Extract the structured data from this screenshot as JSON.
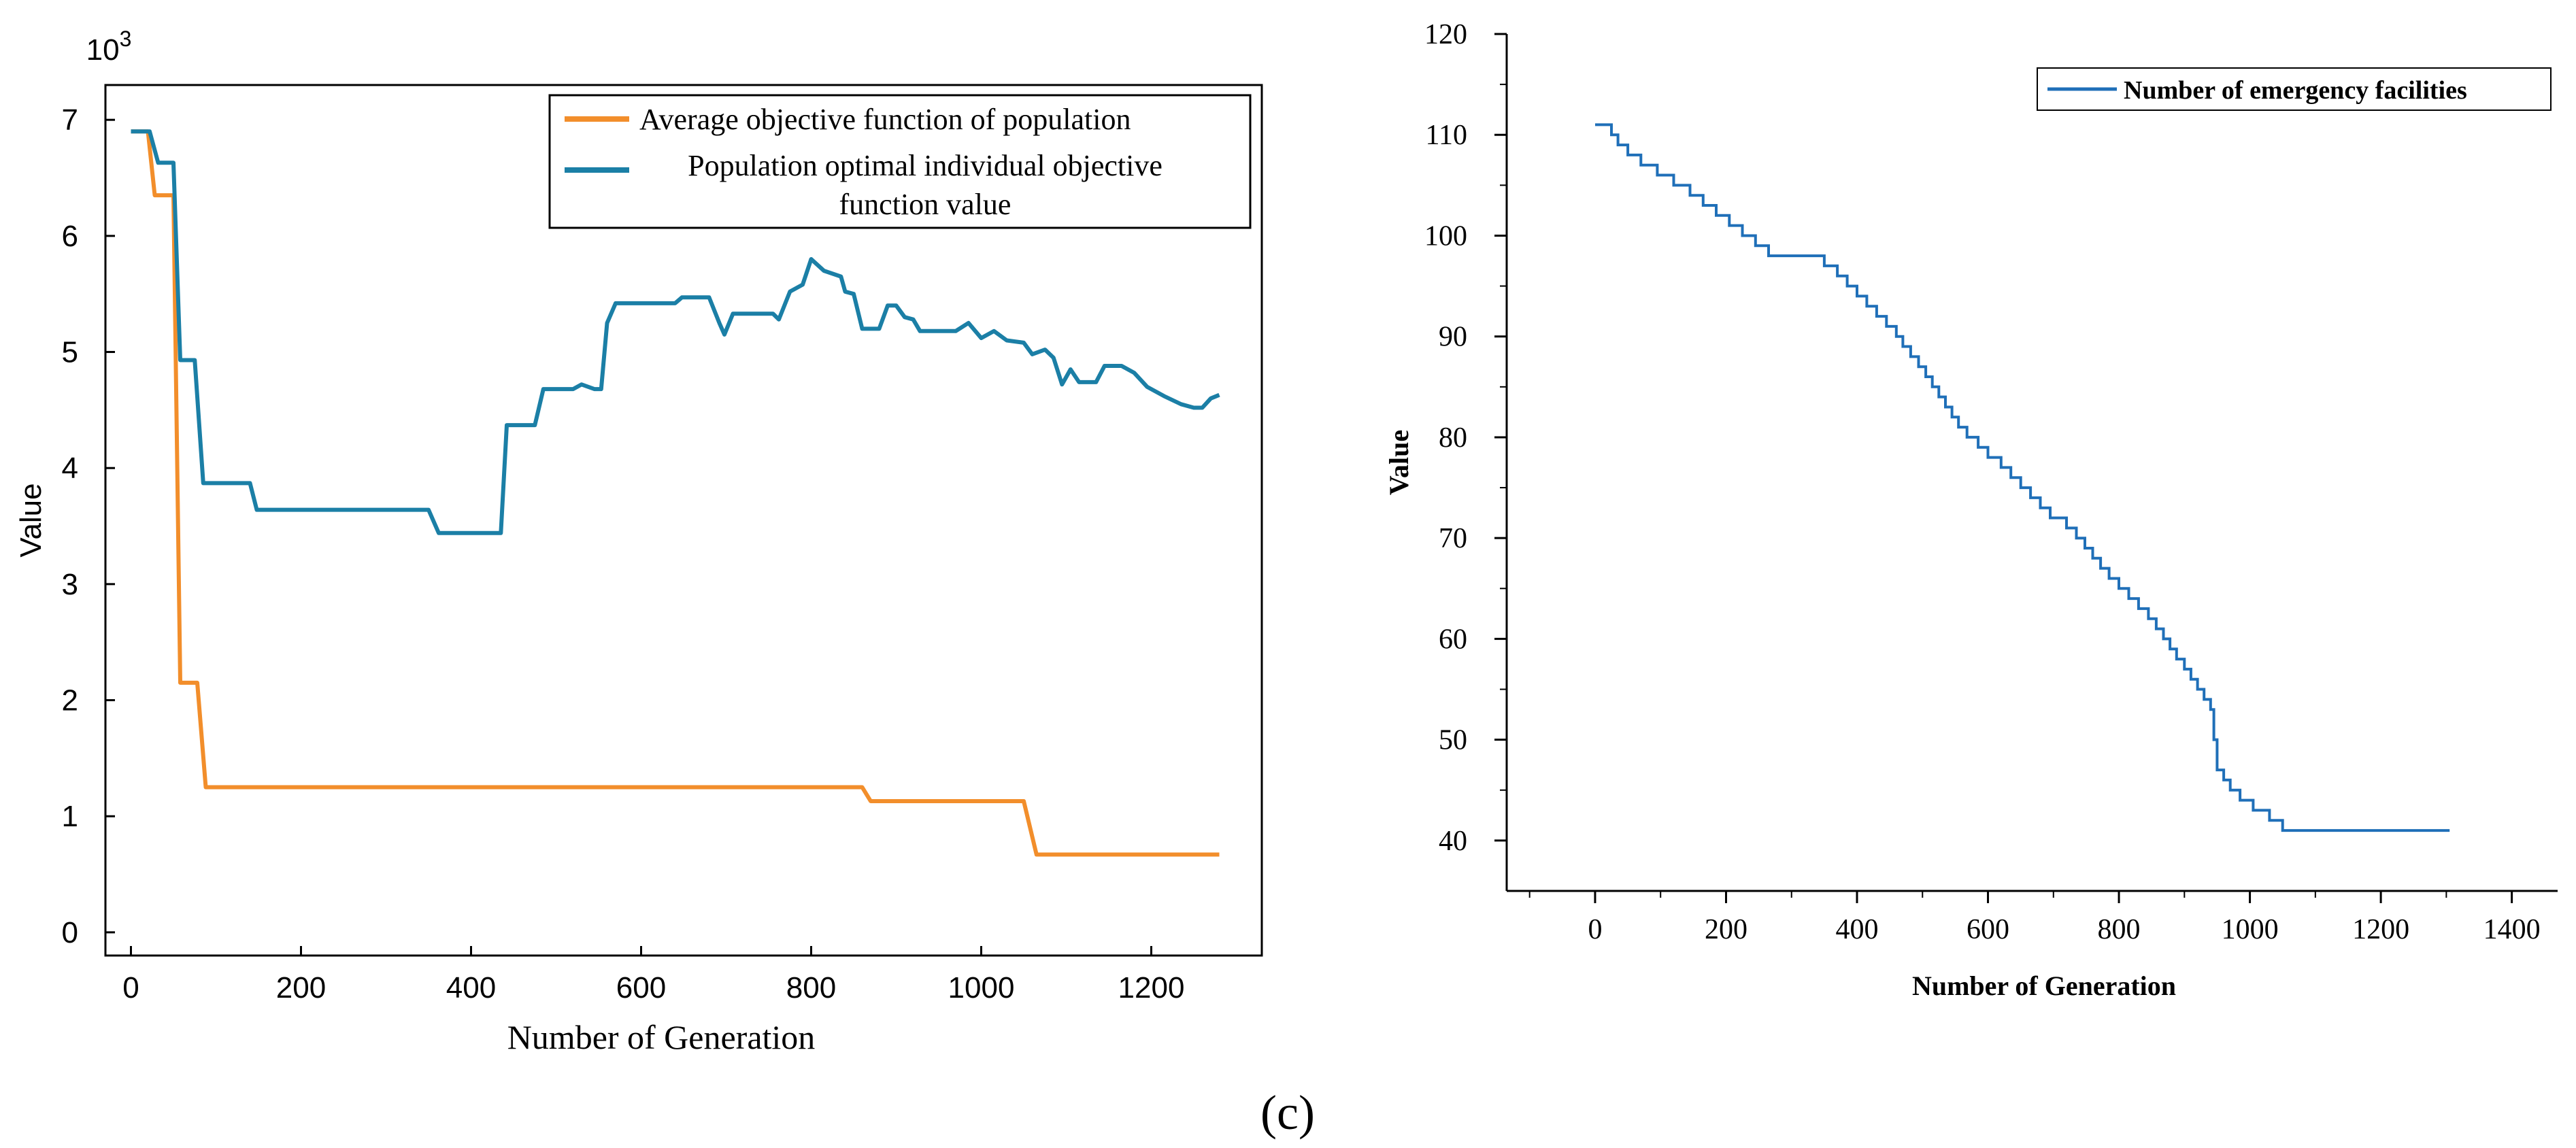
{
  "colors": {
    "average": "#F28E2B",
    "optimal": "#1B7FA6",
    "facilities": "#1F6FB8",
    "axis": "#000000"
  },
  "caption": "(c)",
  "chart_data": [
    {
      "type": "line",
      "title": "",
      "xlabel": "Number of Generation",
      "ylabel": "Value",
      "y_multiplier": "10",
      "y_multiplier_exp": "3",
      "xlim": [
        -30,
        1330
      ],
      "ylim": [
        -0.2,
        7.3
      ],
      "x_ticks": [
        0,
        200,
        400,
        600,
        800,
        1000,
        1200
      ],
      "y_ticks": [
        0,
        1,
        2,
        3,
        4,
        5,
        6,
        7
      ],
      "legend_position": "top-right",
      "legend": {
        "average": "Average objective function of population",
        "optimal_line1": "Population optimal individual objective",
        "optimal_line2": "function value"
      },
      "series": [
        {
          "name": "Average objective function of population",
          "color_key": "average",
          "points": [
            [
              0,
              6.9
            ],
            [
              20,
              6.9
            ],
            [
              28,
              6.35
            ],
            [
              50,
              6.35
            ],
            [
              58,
              2.15
            ],
            [
              78,
              2.15
            ],
            [
              88,
              1.25
            ],
            [
              200,
              1.25
            ],
            [
              400,
              1.25
            ],
            [
              600,
              1.25
            ],
            [
              860,
              1.25
            ],
            [
              870,
              1.13
            ],
            [
              1050,
              1.13
            ],
            [
              1065,
              0.67
            ],
            [
              1280,
              0.67
            ]
          ]
        },
        {
          "name": "Population optimal individual objective function value",
          "color_key": "optimal",
          "points": [
            [
              0,
              6.9
            ],
            [
              22,
              6.9
            ],
            [
              32,
              6.63
            ],
            [
              50,
              6.63
            ],
            [
              58,
              4.93
            ],
            [
              75,
              4.93
            ],
            [
              85,
              3.87
            ],
            [
              140,
              3.87
            ],
            [
              148,
              3.64
            ],
            [
              350,
              3.64
            ],
            [
              362,
              3.44
            ],
            [
              435,
              3.44
            ],
            [
              442,
              4.37
            ],
            [
              475,
              4.37
            ],
            [
              485,
              4.68
            ],
            [
              520,
              4.68
            ],
            [
              530,
              4.72
            ],
            [
              545,
              4.68
            ],
            [
              553,
              4.68
            ],
            [
              560,
              5.25
            ],
            [
              570,
              5.42
            ],
            [
              640,
              5.42
            ],
            [
              648,
              5.47
            ],
            [
              680,
              5.47
            ],
            [
              692,
              5.25
            ],
            [
              698,
              5.15
            ],
            [
              708,
              5.33
            ],
            [
              755,
              5.33
            ],
            [
              762,
              5.28
            ],
            [
              775,
              5.52
            ],
            [
              790,
              5.58
            ],
            [
              800,
              5.8
            ],
            [
              815,
              5.7
            ],
            [
              835,
              5.65
            ],
            [
              840,
              5.52
            ],
            [
              850,
              5.5
            ],
            [
              860,
              5.2
            ],
            [
              880,
              5.2
            ],
            [
              890,
              5.4
            ],
            [
              900,
              5.4
            ],
            [
              910,
              5.3
            ],
            [
              920,
              5.28
            ],
            [
              928,
              5.18
            ],
            [
              970,
              5.18
            ],
            [
              985,
              5.25
            ],
            [
              1000,
              5.12
            ],
            [
              1015,
              5.18
            ],
            [
              1030,
              5.1
            ],
            [
              1050,
              5.08
            ],
            [
              1060,
              4.98
            ],
            [
              1075,
              5.02
            ],
            [
              1085,
              4.95
            ],
            [
              1095,
              4.72
            ],
            [
              1105,
              4.85
            ],
            [
              1115,
              4.74
            ],
            [
              1135,
              4.74
            ],
            [
              1145,
              4.88
            ],
            [
              1165,
              4.88
            ],
            [
              1180,
              4.82
            ],
            [
              1195,
              4.7
            ],
            [
              1215,
              4.62
            ],
            [
              1235,
              4.55
            ],
            [
              1250,
              4.52
            ],
            [
              1260,
              4.52
            ],
            [
              1270,
              4.6
            ],
            [
              1280,
              4.63
            ]
          ]
        }
      ]
    },
    {
      "type": "line",
      "title": "",
      "xlabel": "Number of Generation",
      "ylabel": "Value",
      "xlim": [
        -135,
        1470
      ],
      "ylim": [
        35,
        120
      ],
      "x_ticks": [
        0,
        200,
        400,
        600,
        800,
        1000,
        1200,
        1400
      ],
      "y_ticks": [
        40,
        50,
        60,
        70,
        80,
        90,
        100,
        110,
        120
      ],
      "legend_position": "top-right",
      "legend": {
        "facilities": "Number of emergency facilities"
      },
      "series": [
        {
          "name": "Number of emergency facilities",
          "color_key": "facilities",
          "style": "step",
          "points": [
            [
              0,
              111
            ],
            [
              15,
              111
            ],
            [
              25,
              110
            ],
            [
              35,
              109
            ],
            [
              50,
              108
            ],
            [
              70,
              107
            ],
            [
              95,
              106
            ],
            [
              120,
              105
            ],
            [
              145,
              104
            ],
            [
              165,
              103
            ],
            [
              185,
              102
            ],
            [
              205,
              101
            ],
            [
              225,
              100
            ],
            [
              245,
              99
            ],
            [
              265,
              98
            ],
            [
              340,
              98
            ],
            [
              350,
              97
            ],
            [
              370,
              96
            ],
            [
              385,
              95
            ],
            [
              400,
              94
            ],
            [
              415,
              93
            ],
            [
              430,
              92
            ],
            [
              445,
              91
            ],
            [
              460,
              90
            ],
            [
              470,
              89
            ],
            [
              482,
              88
            ],
            [
              494,
              87
            ],
            [
              505,
              86
            ],
            [
              515,
              85
            ],
            [
              525,
              84
            ],
            [
              535,
              83
            ],
            [
              545,
              82
            ],
            [
              555,
              81
            ],
            [
              568,
              80
            ],
            [
              585,
              79
            ],
            [
              600,
              78
            ],
            [
              620,
              77
            ],
            [
              635,
              76
            ],
            [
              650,
              75
            ],
            [
              665,
              74
            ],
            [
              680,
              73
            ],
            [
              695,
              72
            ],
            [
              720,
              71
            ],
            [
              735,
              70
            ],
            [
              748,
              69
            ],
            [
              760,
              68
            ],
            [
              772,
              67
            ],
            [
              785,
              66
            ],
            [
              800,
              65
            ],
            [
              815,
              64
            ],
            [
              830,
              63
            ],
            [
              845,
              62
            ],
            [
              857,
              61
            ],
            [
              868,
              60
            ],
            [
              878,
              59
            ],
            [
              888,
              58
            ],
            [
              900,
              57
            ],
            [
              910,
              56
            ],
            [
              920,
              55
            ],
            [
              930,
              54
            ],
            [
              940,
              53
            ],
            [
              945,
              50
            ],
            [
              950,
              47
            ],
            [
              960,
              46
            ],
            [
              970,
              45
            ],
            [
              985,
              44
            ],
            [
              1005,
              43
            ],
            [
              1030,
              42
            ],
            [
              1050,
              41
            ],
            [
              1305,
              41
            ]
          ]
        }
      ]
    }
  ]
}
